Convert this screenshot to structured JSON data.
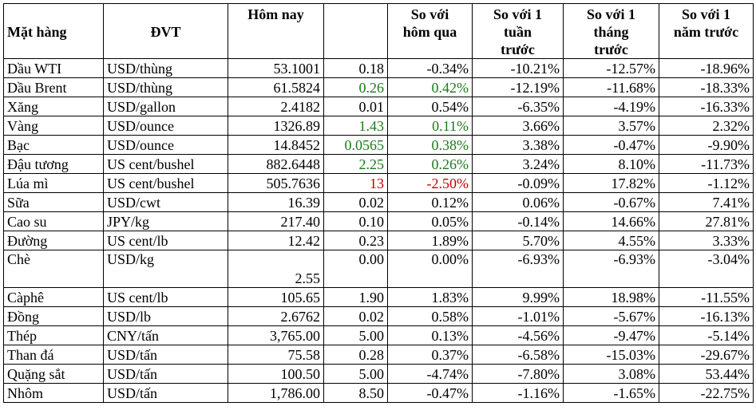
{
  "headers": [
    "Mặt hàng",
    "ĐVT",
    "Hôm nay",
    "",
    "So với\nhôm qua",
    "So với 1\ntuần\ntrước",
    "So với 1\ntháng\ntrước",
    "So với 1\nnăm trước"
  ],
  "rows": [
    {
      "name": "Dầu WTI",
      "unit": "USD/thùng",
      "today": "53.1001",
      "change": "0.18",
      "d": "-0.34%",
      "w": "-10.21%",
      "m": "-12.57%",
      "y": "-18.96%",
      "color": ""
    },
    {
      "name": "Dầu Brent",
      "unit": "USD/thùng",
      "today": "61.5824",
      "change": "0.26",
      "d": "0.42%",
      "w": "-12.19%",
      "m": "-11.68%",
      "y": "-18.33%",
      "color": "up"
    },
    {
      "name": "Xăng",
      "unit": "USD/gallon",
      "today": "2.4182",
      "change": "0.01",
      "d": "0.54%",
      "w": "-6.35%",
      "m": "-4.19%",
      "y": "-16.33%",
      "color": ""
    },
    {
      "name": "Vàng",
      "unit": "USD/ounce",
      "today": "1326.89",
      "change": "1.43",
      "d": "0.11%",
      "w": "3.66%",
      "m": "3.57%",
      "y": "2.32%",
      "color": "up"
    },
    {
      "name": "Bạc",
      "unit": "USD/ounce",
      "today": "14.8452",
      "change": "0.0565",
      "d": "0.38%",
      "w": "3.38%",
      "m": "-0.47%",
      "y": "-9.90%",
      "color": "up"
    },
    {
      "name": "Đậu tương",
      "unit": "US cent/bushel",
      "today": "882.6448",
      "change": "2.25",
      "d": "0.26%",
      "w": "3.24%",
      "m": "8.10%",
      "y": "-11.73%",
      "color": "up"
    },
    {
      "name": "Lúa mì",
      "unit": "US cent/bushel",
      "today": "505.7636",
      "change": "13",
      "d": "-2.50%",
      "w": "-0.09%",
      "m": "17.82%",
      "y": "-1.12%",
      "color": "down"
    },
    {
      "name": "Sữa",
      "unit": "USD/cwt",
      "today": "16.39",
      "change": "0.02",
      "d": "0.12%",
      "w": "0.06%",
      "m": "-0.67%",
      "y": "7.41%",
      "color": ""
    },
    {
      "name": "Cao su",
      "unit": "JPY/kg",
      "today": "217.40",
      "change": "0.10",
      "d": "0.05%",
      "w": "-0.14%",
      "m": "14.66%",
      "y": "27.81%",
      "color": ""
    },
    {
      "name": "Đường",
      "unit": "US cent/lb",
      "today": "12.42",
      "change": "0.23",
      "d": "1.89%",
      "w": "5.70%",
      "m": "4.55%",
      "y": "3.33%",
      "color": ""
    },
    {
      "name": "Chè",
      "unit": "USD/kg",
      "today": "2.55",
      "change": "0.00",
      "d": "0.00%",
      "w": "-6.93%",
      "m": "-6.93%",
      "y": "-3.04%",
      "color": "",
      "tall": true
    },
    {
      "name": "Càphê",
      "unit": "US cent/lb",
      "today": "105.65",
      "change": "1.90",
      "d": "1.83%",
      "w": "9.99%",
      "m": "18.98%",
      "y": "-11.55%",
      "color": ""
    },
    {
      "name": "Đồng",
      "unit": "USD/lb",
      "today": "2.6762",
      "change": "0.02",
      "d": "0.58%",
      "w": "-1.01%",
      "m": "-5.67%",
      "y": "-16.13%",
      "color": ""
    },
    {
      "name": "Thép",
      "unit": "CNY/tấn",
      "today": "3,765.00",
      "change": "5.00",
      "d": "0.13%",
      "w": "-4.56%",
      "m": "-9.47%",
      "y": "-5.14%",
      "color": ""
    },
    {
      "name": "Than đá",
      "unit": "USD/tấn",
      "today": "75.58",
      "change": "0.28",
      "d": "0.37%",
      "w": "-6.58%",
      "m": "-15.03%",
      "y": "-29.67%",
      "color": ""
    },
    {
      "name": "Quặng sắt",
      "unit": "USD/tấn",
      "today": "100.50",
      "change": "5.00",
      "d": "-4.74%",
      "w": "-7.80%",
      "m": "3.08%",
      "y": "53.44%",
      "color": ""
    },
    {
      "name": "Nhôm",
      "unit": "USD/tấn",
      "today": "1,786.00",
      "change": "8.50",
      "d": "-0.47%",
      "w": "-1.16%",
      "m": "-1.65%",
      "y": "-22.75%",
      "color": ""
    }
  ]
}
